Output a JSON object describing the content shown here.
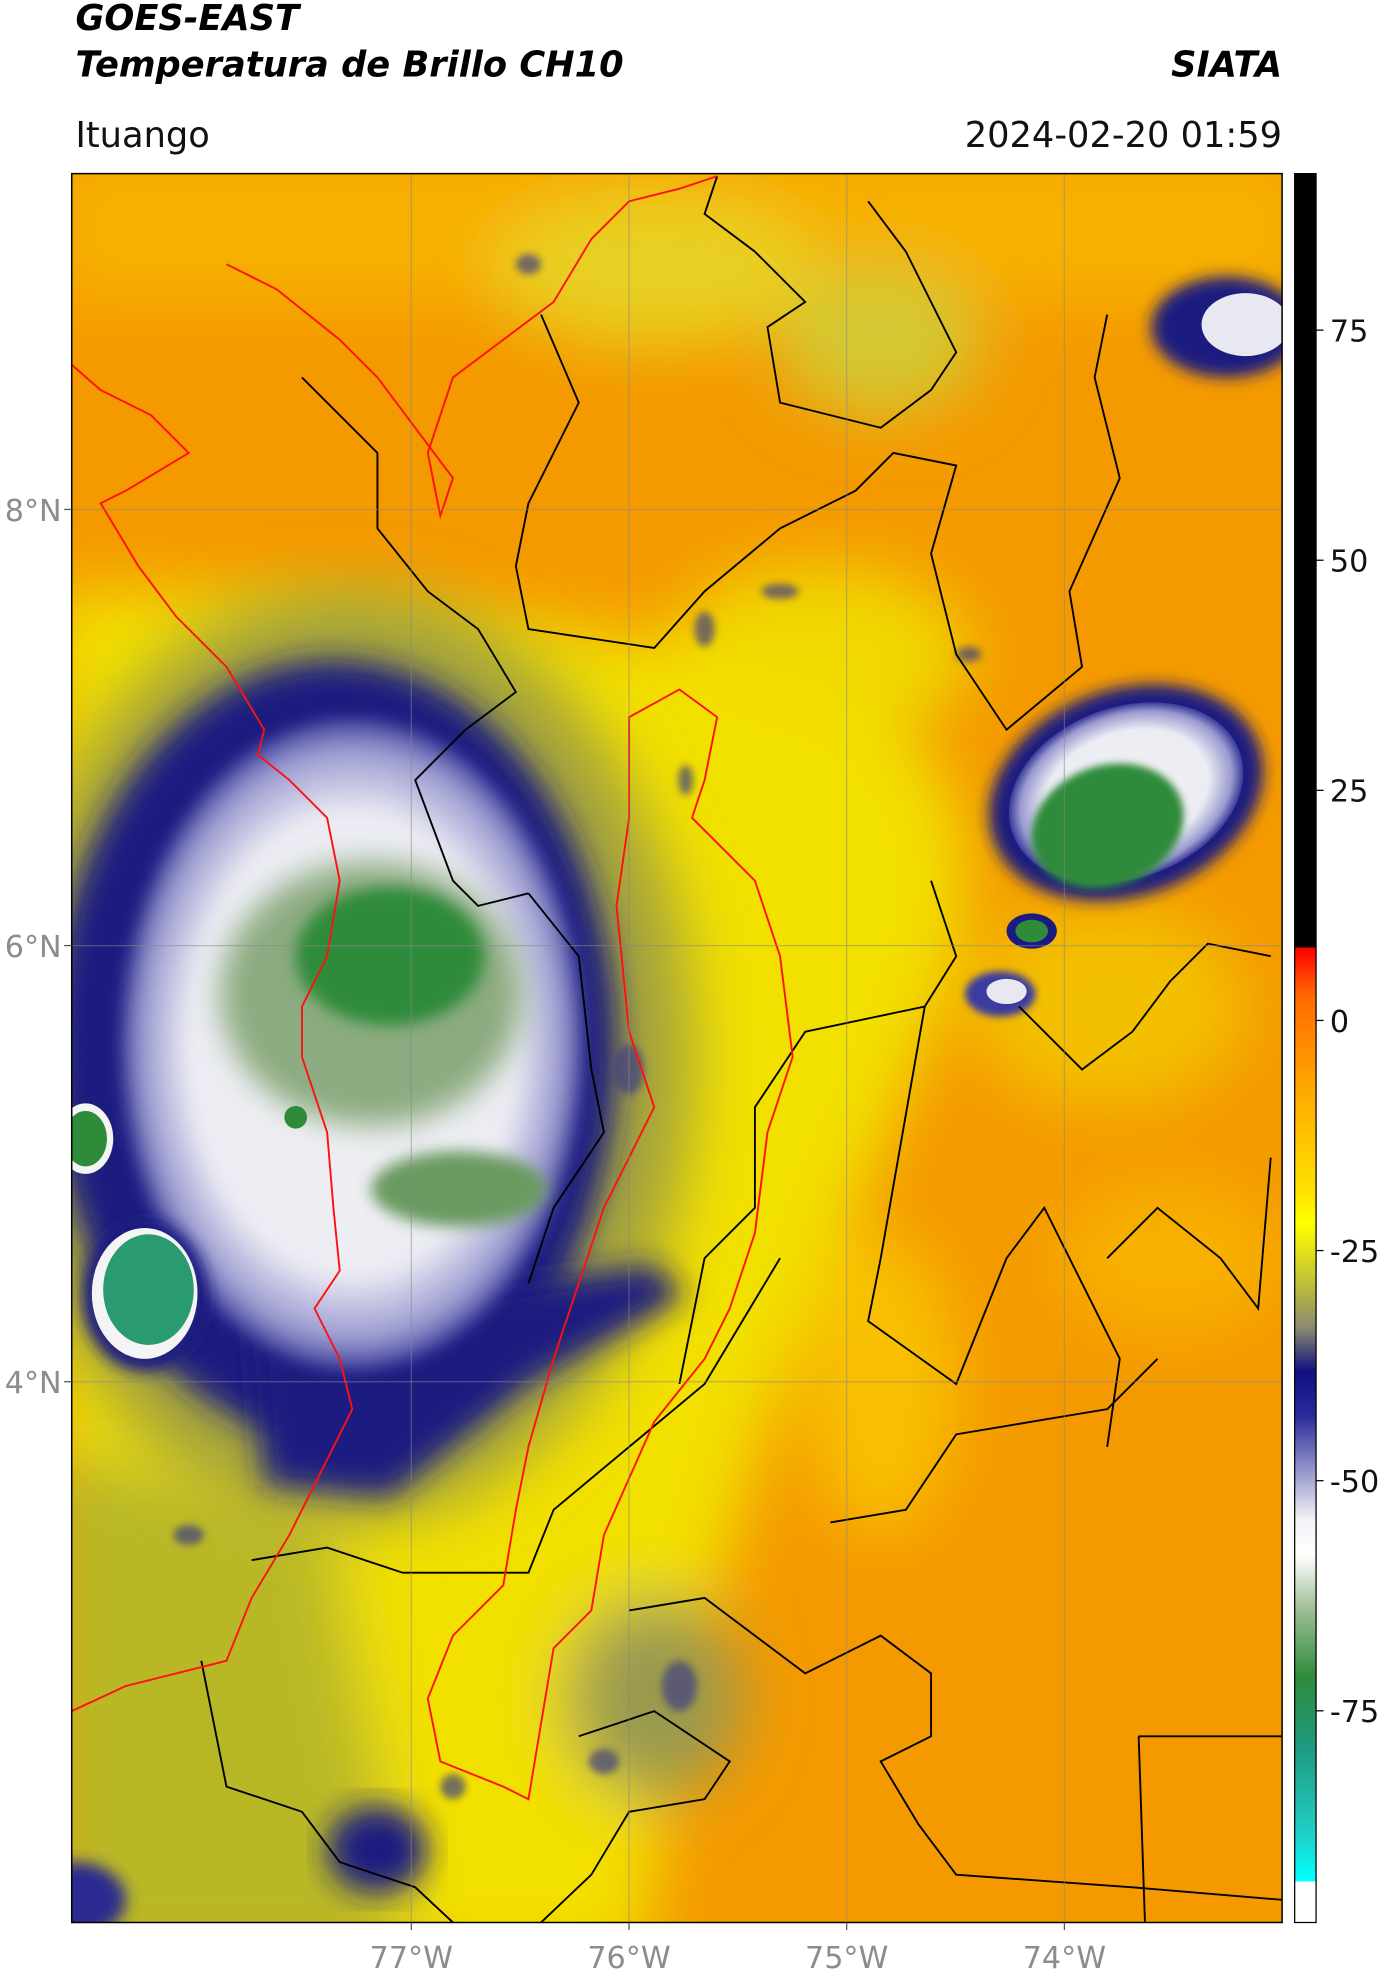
{
  "header": {
    "satellite": "GOES-EAST",
    "product": "Temperatura de Brillo CH10",
    "agency": "SIATA",
    "location": "Ituango",
    "datetime": "2024-02-20 01:59"
  },
  "map": {
    "xlim": [
      -78.56,
      -73.0
    ],
    "ylim": [
      1.52,
      9.54
    ],
    "xticks": [
      {
        "value": -77,
        "label": "77°W"
      },
      {
        "value": -76,
        "label": "76°W"
      },
      {
        "value": -75,
        "label": "75°W"
      },
      {
        "value": -74,
        "label": "74°W"
      }
    ],
    "yticks": [
      {
        "value": 4,
        "label": "4°N"
      },
      {
        "value": 6,
        "label": "6°N"
      },
      {
        "value": 8,
        "label": "8°N"
      }
    ],
    "grid": true
  },
  "colorbar": {
    "clim": [
      -98,
      92
    ],
    "ticks": [
      75,
      50,
      25,
      0,
      -25,
      -50,
      -75
    ]
  }
}
